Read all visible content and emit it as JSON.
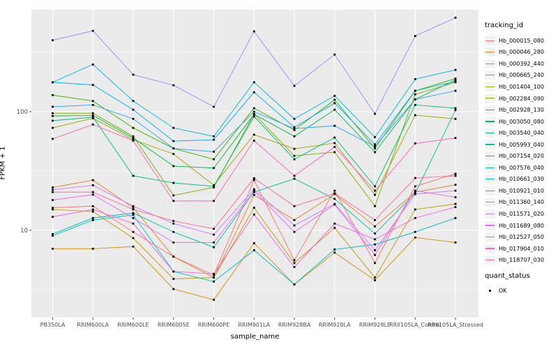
{
  "chart_data": {
    "type": "line",
    "title": "",
    "xlabel": "sample_name",
    "ylabel": "FPKM + 1",
    "y_scale": "log10",
    "y_ticks": [
      10,
      100
    ],
    "y_minor_gridlines": [
      3.162,
      31.62,
      316.2
    ],
    "ylim": [
      1.84,
      722
    ],
    "panel_bg": "#EBEBEB",
    "grid_color": "#FFFFFF",
    "tick_label_color": "#4D4D4D",
    "marker": "square",
    "marker_color": "#000000",
    "legend": {
      "title": "tracking_id",
      "position": "right",
      "key_bg": "#F2F2F2"
    },
    "quant_legend": {
      "title": "quant_status",
      "items": [
        {
          "label": "OK",
          "marker": "black-square"
        }
      ]
    },
    "categories": [
      "PB350LA",
      "RRIM600LA",
      "RRIM600LE",
      "RRIM600SE",
      "RRIM600PE",
      "RRIM901LA",
      "RRIM928BA",
      "RRIM928LA",
      "RRIM928LE",
      "RRII105LA_Control",
      "RRII105LA_Stressed"
    ],
    "series": [
      {
        "name": "Hb_000015_080",
        "color": "#F8766D",
        "values": [
          15.5,
          16,
          9.7,
          6.0,
          4.2,
          26.5,
          5.6,
          21.6,
          5.3,
          23.5,
          30
        ]
      },
      {
        "name": "Hb_000046_280",
        "color": "#EA8331",
        "values": [
          23,
          26.5,
          15.5,
          6.0,
          4.0,
          19.9,
          12.2,
          20.2,
          10.8,
          21,
          24.2
        ]
      },
      {
        "name": "Hb_000392_440",
        "color": "#D89000",
        "values": [
          7.0,
          7.0,
          7.3,
          3.2,
          2.6,
          7.8,
          3.5,
          6.5,
          3.8,
          8.7,
          7.9
        ]
      },
      {
        "name": "Hb_000665_240",
        "color": "#C09B00",
        "values": [
          15,
          14.4,
          8.6,
          3.9,
          4.0,
          15.5,
          5.3,
          10.5,
          4.0,
          15,
          16.7
        ]
      },
      {
        "name": "Hb_001404_100",
        "color": "#A3A500",
        "values": [
          73,
          88,
          58,
          44,
          24,
          64,
          48.6,
          54.4,
          19.9,
          93.5,
          87
        ]
      },
      {
        "name": "Hb_002284_090",
        "color": "#7CAE00",
        "values": [
          97,
          97,
          62,
          19.7,
          23,
          95.6,
          42.5,
          45.6,
          16,
          140,
          177
        ]
      },
      {
        "name": "Hb_002928_130",
        "color": "#39B600",
        "values": [
          138,
          123,
          73,
          49,
          39.7,
          107,
          70,
          126,
          49,
          150,
          190
        ]
      },
      {
        "name": "Hb_003050_080",
        "color": "#00BB4E",
        "values": [
          92,
          93,
          60,
          34.8,
          33.5,
          95,
          62,
          104,
          45.6,
          127,
          185
        ]
      },
      {
        "name": "Hb_003540_040",
        "color": "#00BF7D",
        "values": [
          84,
          90,
          28.8,
          25.1,
          23.5,
          91,
          39.7,
          60.5,
          23.5,
          114,
          107
        ]
      },
      {
        "name": "Hb_005993_040",
        "color": "#00C1A3",
        "values": [
          9.3,
          12.7,
          14,
          9.7,
          7.2,
          21,
          27.2,
          18.4,
          9.4,
          20.5,
          103
        ]
      },
      {
        "name": "Hb_007154_020",
        "color": "#00BFC4",
        "values": [
          9.0,
          12.2,
          13.5,
          4.5,
          3.7,
          6.8,
          3.5,
          6.9,
          7.6,
          9.7,
          12.7
        ]
      },
      {
        "name": "Hb_007576_040",
        "color": "#00BAE0",
        "values": [
          177,
          250,
          123,
          73,
          62,
          177,
          87,
          136,
          61,
          188,
          225
        ]
      },
      {
        "name": "Hb_010661_030",
        "color": "#00B0F6",
        "values": [
          177,
          168,
          104,
          56.5,
          58,
          146,
          74,
          118,
          53,
          150,
          180
        ]
      },
      {
        "name": "Hb_010921_010",
        "color": "#35A2FF",
        "values": [
          110,
          114,
          87,
          49,
          46,
          100,
          72,
          76,
          51,
          127,
          150
        ]
      },
      {
        "name": "Hb_011360_140",
        "color": "#9590FF",
        "values": [
          400,
          480,
          205,
          167,
          110,
          475,
          165,
          303,
          96,
          434,
          620
        ]
      },
      {
        "name": "Hb_011571_020",
        "color": "#C77CFF",
        "values": [
          22,
          24,
          16,
          11.4,
          9.2,
          22.2,
          11,
          16.7,
          6.8,
          20.2,
          21.6
        ]
      },
      {
        "name": "Hb_011689_080",
        "color": "#E76BF3",
        "values": [
          18,
          20,
          12.7,
          7.9,
          7.9,
          21.5,
          9.7,
          16.5,
          6.2,
          21.6,
          19
        ]
      },
      {
        "name": "Hb_012527_050",
        "color": "#FA62DB",
        "values": [
          13,
          15,
          11.4,
          4.5,
          4.3,
          13.6,
          4.9,
          11.4,
          8.4,
          12.7,
          15.7
        ]
      },
      {
        "name": "Hb_017904_010",
        "color": "#FF62BC",
        "values": [
          59,
          78,
          57,
          17.7,
          17.7,
          57,
          28.8,
          50.5,
          21.6,
          54,
          60
        ]
      },
      {
        "name": "Hb_118707_030",
        "color": "#FF6A98",
        "values": [
          21,
          21,
          15,
          12,
          10.3,
          27.5,
          16,
          20.5,
          12.2,
          27.6,
          28.8
        ]
      }
    ]
  }
}
